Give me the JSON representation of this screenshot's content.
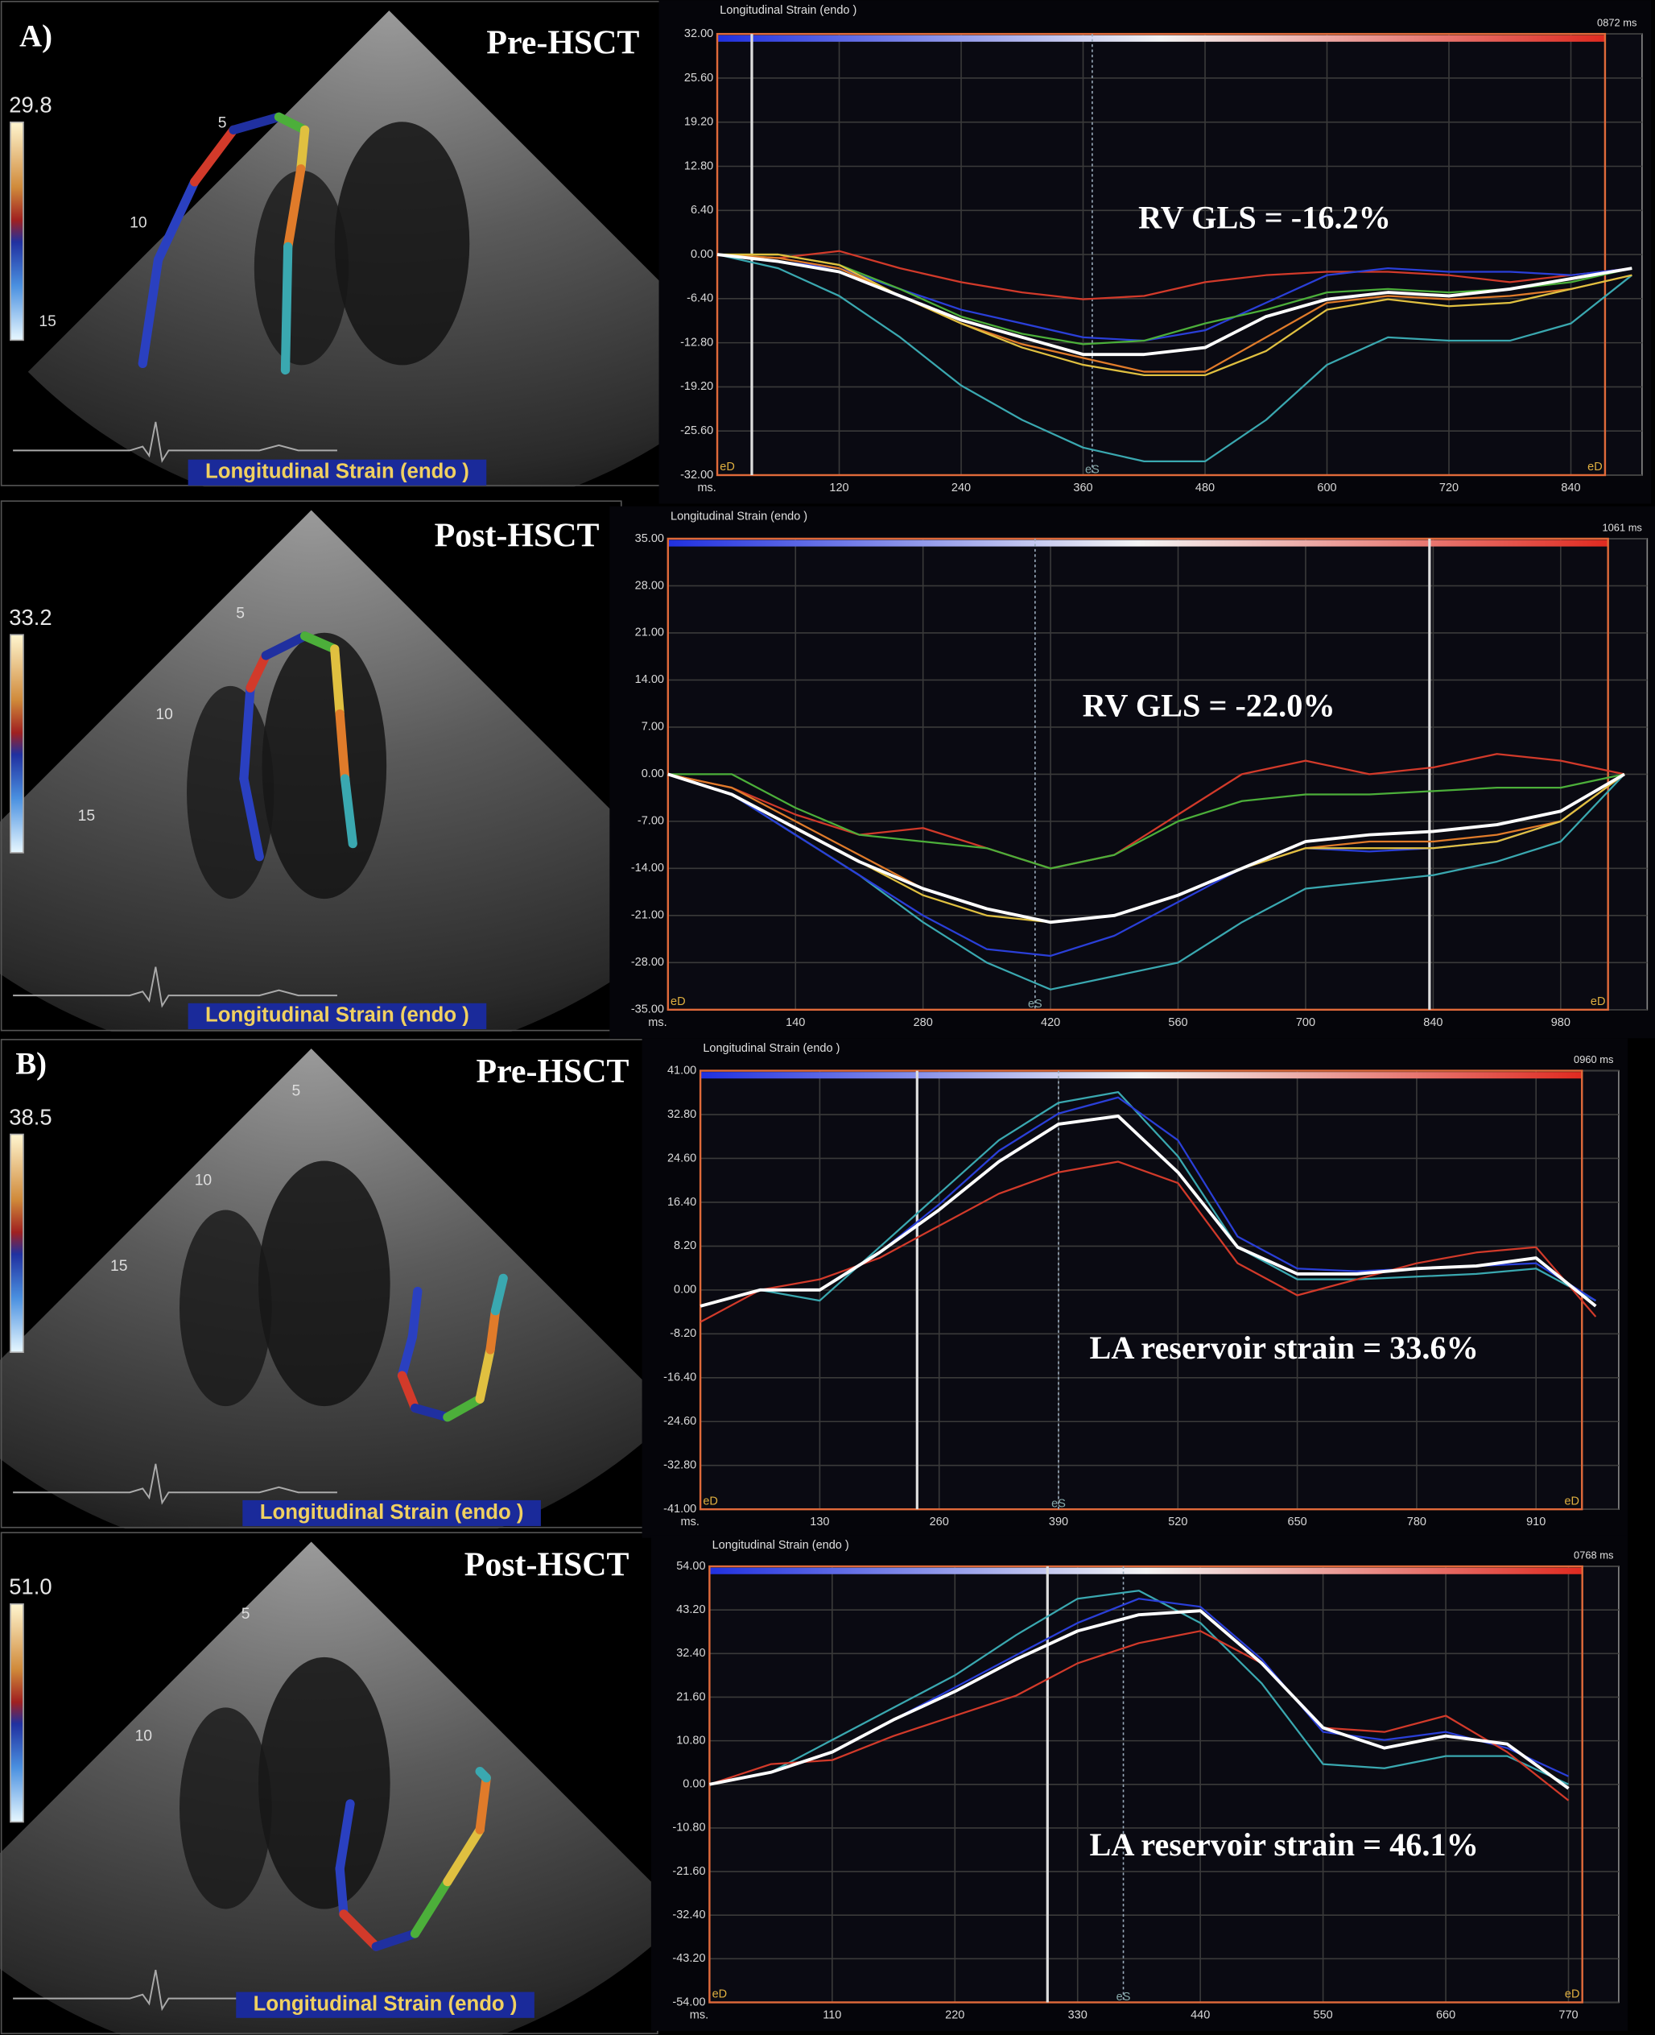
{
  "panels": [
    {
      "section": "A)",
      "label": "Pre-HSCT",
      "scale_max": "29.8",
      "depth_marks": [
        "5",
        "10",
        "15"
      ],
      "caption": "Longitudinal Strain (endo )"
    },
    {
      "label": "Post-HSCT",
      "scale_max": "33.2",
      "depth_marks": [
        "5",
        "10",
        "15"
      ],
      "caption": "Longitudinal Strain (endo )"
    },
    {
      "section": "B)",
      "label": "Pre-HSCT",
      "scale_max": "38.5",
      "depth_marks": [
        "5",
        "10",
        "15"
      ],
      "caption": "Longitudinal Strain (endo )"
    },
    {
      "label": "Post-HSCT",
      "scale_max": "51.0",
      "depth_marks": [
        "5",
        "10"
      ],
      "caption": "Longitudinal Strain (endo )"
    }
  ],
  "chart_data": [
    {
      "type": "line",
      "title": "Longitudinal Strain (endo )",
      "duration": "0872 ms",
      "annotation": "RV GLS = -16.2%",
      "xlabel": "ms.",
      "edge_label": "eD",
      "es_label": "eS",
      "es_x": 369,
      "cursor_x": 34,
      "xlim": [
        0,
        910
      ],
      "xticks": [
        120,
        240,
        360,
        480,
        600,
        720,
        840
      ],
      "ylim": [
        -32,
        32
      ],
      "yticks": [
        {
          "value": 32,
          "label": "32.00"
        },
        {
          "value": 25.6,
          "label": "25.60"
        },
        {
          "value": 19.2,
          "label": "19.20"
        },
        {
          "value": 12.8,
          "label": "12.80"
        },
        {
          "value": 6.4,
          "label": "6.40"
        },
        {
          "value": 0,
          "label": "0.00"
        },
        {
          "value": -6.4,
          "label": "-6.40"
        },
        {
          "value": -12.8,
          "label": "-12.80"
        },
        {
          "value": -19.2,
          "label": "-19.20"
        },
        {
          "value": -25.6,
          "label": "-25.60"
        },
        {
          "value": -32,
          "label": "-32.00"
        }
      ],
      "x": [
        0,
        60,
        120,
        180,
        240,
        300,
        360,
        420,
        480,
        540,
        600,
        660,
        720,
        780,
        840,
        900
      ],
      "series": [
        {
          "color": "#3aa8b0",
          "values": [
            0,
            -2,
            -6,
            -12,
            -19,
            -24,
            -28,
            -30,
            -30,
            -24,
            -16,
            -12,
            -12.5,
            -12.5,
            -10,
            -3
          ]
        },
        {
          "color": "#d23a2a",
          "values": [
            0,
            -0.5,
            0.5,
            -2,
            -4,
            -5.5,
            -6.5,
            -6,
            -4,
            -3,
            -2.5,
            -2.5,
            -3,
            -4,
            -3,
            -2
          ]
        },
        {
          "color": "#2a3fd8",
          "values": [
            0,
            -1,
            -2,
            -5,
            -8,
            -10,
            -12,
            -12.5,
            -11,
            -7,
            -3,
            -2,
            -2.5,
            -2.5,
            -3,
            -2
          ]
        },
        {
          "color": "#4caf3a",
          "values": [
            0,
            0,
            -1.5,
            -5,
            -9,
            -11.5,
            -13,
            -12.5,
            -10,
            -8,
            -5.5,
            -5,
            -5.5,
            -5,
            -4,
            -2
          ]
        },
        {
          "color": "#e07b2a",
          "values": [
            0,
            -0.5,
            -2,
            -6,
            -10,
            -13,
            -15,
            -17,
            -17,
            -12,
            -7,
            -6,
            -6.5,
            -6,
            -5,
            -3
          ]
        },
        {
          "color": "#e0c040",
          "values": [
            0,
            0,
            -1.5,
            -6,
            -10,
            -13.5,
            -16,
            -17.5,
            -17.5,
            -14,
            -8,
            -6.5,
            -7.5,
            -7,
            -5,
            -3
          ]
        },
        {
          "color": "#ffffff",
          "values": [
            0,
            -1,
            -2.5,
            -6,
            -9.5,
            -12,
            -14.5,
            -14.5,
            -13.5,
            -9,
            -6.5,
            -5.5,
            -6,
            -5,
            -3.5,
            -2
          ]
        }
      ]
    },
    {
      "type": "line",
      "title": "Longitudinal Strain (endo )",
      "duration": "1061 ms",
      "annotation": "RV GLS = -22.0%",
      "xlabel": "ms.",
      "edge_label": "eD",
      "es_label": "eS",
      "es_x": 403,
      "cursor_x": 836,
      "xlim": [
        0,
        1075
      ],
      "xticks": [
        140,
        280,
        420,
        560,
        700,
        840,
        980
      ],
      "ylim": [
        -35,
        35
      ],
      "yticks": [
        {
          "value": 35,
          "label": "35.00"
        },
        {
          "value": 28,
          "label": "28.00"
        },
        {
          "value": 21,
          "label": "21.00"
        },
        {
          "value": 14,
          "label": "14.00"
        },
        {
          "value": 7,
          "label": "7.00"
        },
        {
          "value": 0,
          "label": "0.00"
        },
        {
          "value": -7,
          "label": "-7.00"
        },
        {
          "value": -14,
          "label": "-14.00"
        },
        {
          "value": -21,
          "label": "-21.00"
        },
        {
          "value": -28,
          "label": "-28.00"
        },
        {
          "value": -35,
          "label": "-35.00"
        }
      ],
      "x": [
        0,
        70,
        140,
        210,
        280,
        350,
        420,
        490,
        560,
        630,
        700,
        770,
        840,
        910,
        980,
        1050
      ],
      "series": [
        {
          "color": "#3aa8b0",
          "values": [
            0,
            -3,
            -9,
            -15,
            -22,
            -28,
            -32,
            -30,
            -28,
            -22,
            -17,
            -16,
            -15,
            -13,
            -10,
            0
          ]
        },
        {
          "color": "#2a3fd8",
          "values": [
            0,
            -3,
            -9,
            -15,
            -21,
            -26,
            -27,
            -24,
            -19,
            -14,
            -11,
            -11.5,
            -11,
            -10,
            -7,
            0
          ]
        },
        {
          "color": "#d23a2a",
          "values": [
            0,
            -2,
            -6,
            -9,
            -8,
            -11,
            -14,
            -12,
            -6,
            0,
            2,
            0,
            1,
            3,
            2,
            0
          ]
        },
        {
          "color": "#4caf3a",
          "values": [
            0,
            0,
            -5,
            -9,
            -10,
            -11,
            -14,
            -12,
            -7,
            -4,
            -3,
            -3,
            -2.5,
            -2,
            -2,
            0
          ]
        },
        {
          "color": "#e07b2a",
          "values": [
            0,
            -2,
            -7,
            -12,
            -17,
            -20,
            -22,
            -21,
            -18,
            -14,
            -11,
            -10,
            -10,
            -9,
            -7,
            0
          ]
        },
        {
          "color": "#e0c040",
          "values": [
            0,
            -3,
            -8,
            -13,
            -18,
            -21,
            -22,
            -21,
            -18,
            -14,
            -11,
            -11,
            -11,
            -10,
            -7,
            0
          ]
        },
        {
          "color": "#ffffff",
          "values": [
            0,
            -3,
            -8,
            -13,
            -17,
            -20,
            -22,
            -21,
            -18,
            -14,
            -10,
            -9,
            -8.5,
            -7.5,
            -5.5,
            0
          ]
        }
      ]
    },
    {
      "type": "line",
      "title": "Longitudinal Strain (endo )",
      "duration": "0960 ms",
      "annotation": "LA reservoir strain = 33.6%",
      "xlabel": "ms.",
      "edge_label": "eD",
      "es_label": "eS",
      "es_x": 390,
      "cursor_x": 236,
      "xlim": [
        0,
        1000
      ],
      "xticks": [
        130,
        260,
        390,
        520,
        650,
        780,
        910
      ],
      "ylim": [
        -41,
        41
      ],
      "yticks": [
        {
          "value": 41,
          "label": "41.00"
        },
        {
          "value": 32.8,
          "label": "32.80"
        },
        {
          "value": 24.6,
          "label": "24.60"
        },
        {
          "value": 16.4,
          "label": "16.40"
        },
        {
          "value": 8.2,
          "label": "8.20"
        },
        {
          "value": 0,
          "label": "0.00"
        },
        {
          "value": -8.2,
          "label": "-8.20"
        },
        {
          "value": -16.4,
          "label": "-16.40"
        },
        {
          "value": -24.6,
          "label": "-24.60"
        },
        {
          "value": -32.8,
          "label": "-32.80"
        },
        {
          "value": -41,
          "label": "-41.00"
        }
      ],
      "x": [
        0,
        65,
        130,
        195,
        260,
        325,
        390,
        455,
        520,
        585,
        650,
        715,
        780,
        845,
        910,
        975
      ],
      "series": [
        {
          "color": "#3aa8b0",
          "values": [
            -3,
            0,
            -2,
            8,
            18,
            28,
            35,
            37,
            25,
            8,
            2,
            2,
            2.5,
            3,
            4,
            -2
          ]
        },
        {
          "color": "#2a3fd8",
          "values": [
            -3,
            0,
            0,
            7,
            16,
            26,
            33,
            36,
            28,
            10,
            4,
            3.5,
            4,
            4.5,
            5,
            -2
          ]
        },
        {
          "color": "#d23a2a",
          "values": [
            -6,
            0,
            2,
            6,
            12,
            18,
            22,
            24,
            20,
            5,
            -1,
            2,
            5,
            7,
            8,
            -5
          ]
        },
        {
          "color": "#ffffff",
          "values": [
            -3,
            0,
            0,
            7,
            15,
            24,
            31,
            32.5,
            22,
            8,
            3,
            3,
            4,
            4.5,
            6,
            -3
          ]
        }
      ]
    },
    {
      "type": "line",
      "title": "Longitudinal Strain (endo )",
      "duration": "0768 ms",
      "annotation": "LA reservoir strain = 46.1%",
      "xlabel": "ms.",
      "edge_label": "eD",
      "es_label": "eS",
      "es_x": 371,
      "cursor_x": 303,
      "xlim": [
        0,
        815
      ],
      "xticks": [
        110,
        220,
        330,
        440,
        550,
        660,
        770
      ],
      "ylim": [
        -54,
        54
      ],
      "yticks": [
        {
          "value": 54,
          "label": "54.00"
        },
        {
          "value": 43.2,
          "label": "43.20"
        },
        {
          "value": 32.4,
          "label": "32.40"
        },
        {
          "value": 21.6,
          "label": "21.60"
        },
        {
          "value": 10.8,
          "label": "10.80"
        },
        {
          "value": 0,
          "label": "0.00"
        },
        {
          "value": -10.8,
          "label": "-10.80"
        },
        {
          "value": -21.6,
          "label": "-21.60"
        },
        {
          "value": -32.4,
          "label": "-32.40"
        },
        {
          "value": -43.2,
          "label": "-43.20"
        },
        {
          "value": -54,
          "label": "-54.00"
        }
      ],
      "x": [
        0,
        55,
        110,
        165,
        220,
        275,
        330,
        385,
        440,
        495,
        550,
        605,
        660,
        715,
        770
      ],
      "series": [
        {
          "color": "#3aa8b0",
          "values": [
            0,
            3,
            11,
            19,
            27,
            37,
            46,
            48,
            40,
            25,
            5,
            4,
            7,
            7,
            0
          ]
        },
        {
          "color": "#2a3fd8",
          "values": [
            0,
            3,
            8,
            16,
            24,
            32,
            40,
            46,
            44,
            31,
            13,
            11,
            13,
            9,
            2
          ]
        },
        {
          "color": "#d23a2a",
          "values": [
            0,
            5,
            6,
            12,
            17,
            22,
            30,
            35,
            38,
            30,
            14,
            13,
            17,
            8,
            -4
          ]
        },
        {
          "color": "#ffffff",
          "values": [
            0,
            3,
            8,
            16,
            23,
            31,
            38,
            42,
            43,
            30,
            14,
            9,
            12,
            10,
            -1
          ]
        }
      ]
    }
  ]
}
